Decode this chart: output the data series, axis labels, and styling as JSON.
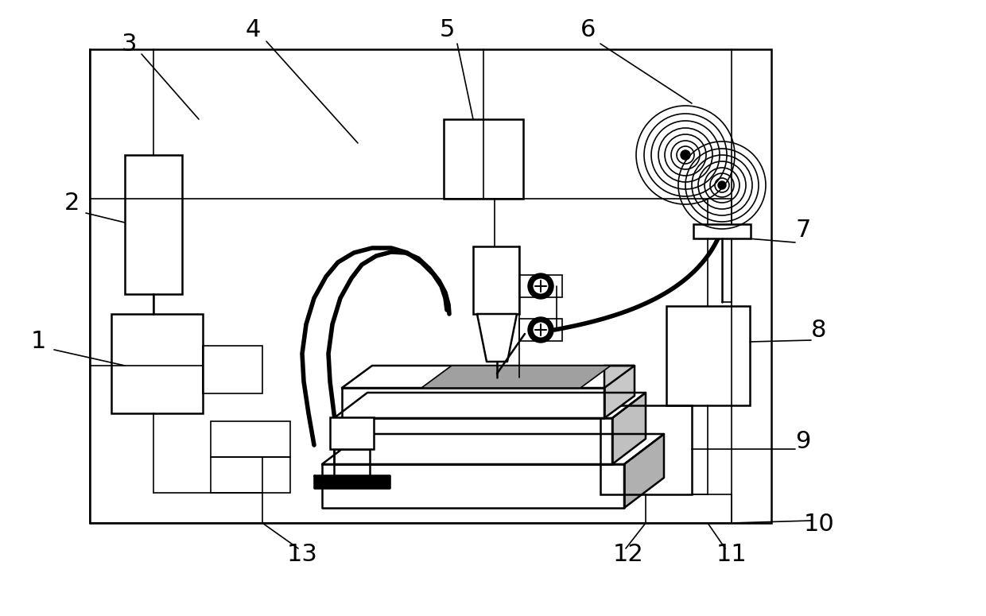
{
  "bg_color": "#ffffff",
  "lw_thin": 1.2,
  "lw_med": 1.8,
  "lw_thick": 4.0,
  "label_fs": 22,
  "fig_w": 12.4,
  "fig_h": 7.75,
  "dpi": 100
}
